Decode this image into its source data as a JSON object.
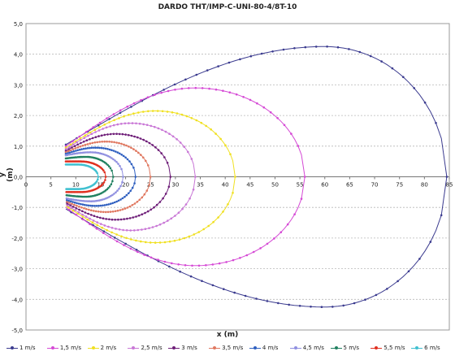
{
  "chart_data": {
    "type": "scatter",
    "title": "DARDO THT/IMP-C-UNI-80-4/8T-10",
    "xlabel": "x (m)",
    "ylabel": "y (m)",
    "xlim": [
      0,
      85
    ],
    "ylim": [
      -5,
      5
    ],
    "x_ticks": [
      "0",
      "5",
      "10",
      "15",
      "20",
      "25",
      "30",
      "35",
      "40",
      "45",
      "50",
      "55",
      "60",
      "65",
      "70",
      "75",
      "80",
      "85"
    ],
    "y_ticks": [
      "-5,0",
      "-4,0",
      "-3,0",
      "-2,0",
      "-1,0",
      "0,0",
      "1,0",
      "2,0",
      "3,0",
      "4,0",
      "5,0"
    ],
    "grid": "horizontal dashed",
    "legend_position": "bottom",
    "series": [
      {
        "name": "1 m/s",
        "color": "#3b3b8f",
        "x0": 8,
        "x_max": 84.5,
        "x_peak": 60,
        "y_max": 4.25,
        "y_start": 1.05
      },
      {
        "name": "1,5 m/s",
        "color": "#d54ad5",
        "x0": 8,
        "x_max": 56,
        "x_peak": 34,
        "y_max": 2.9,
        "y_start": 1.0
      },
      {
        "name": "2 m/s",
        "color": "#f0e020",
        "x0": 8,
        "x_max": 42,
        "x_peak": 26,
        "y_max": 2.15,
        "y_start": 0.95
      },
      {
        "name": "2,5 m/s",
        "color": "#c978d6",
        "x0": 8,
        "x_max": 34,
        "x_peak": 21,
        "y_max": 1.75,
        "y_start": 0.9
      },
      {
        "name": "3 m/s",
        "color": "#6e1e78",
        "x0": 8,
        "x_max": 29,
        "x_peak": 18,
        "y_max": 1.4,
        "y_start": 0.85
      },
      {
        "name": "3,5 m/s",
        "color": "#e07860",
        "x0": 8,
        "x_max": 25,
        "x_peak": 16,
        "y_max": 1.15,
        "y_start": 0.8
      },
      {
        "name": "4 m/s",
        "color": "#3060c0",
        "x0": 8,
        "x_max": 22,
        "x_peak": 14,
        "y_max": 0.95,
        "y_start": 0.75
      },
      {
        "name": "4,5 m/s",
        "color": "#9090e0",
        "x0": 8,
        "x_max": 19.5,
        "x_peak": 13,
        "y_max": 0.8,
        "y_start": 0.7
      },
      {
        "name": "5 m/s",
        "color": "#208060",
        "x0": 8,
        "x_max": 17.5,
        "x_peak": 12,
        "y_max": 0.65,
        "y_start": 0.6
      },
      {
        "name": "5,5 m/s",
        "color": "#e03020",
        "x0": 8,
        "x_max": 16,
        "x_peak": 11,
        "y_max": 0.5,
        "y_start": 0.5
      },
      {
        "name": "6 m/s",
        "color": "#40c0d0",
        "x0": 8,
        "x_max": 14.5,
        "x_peak": 10.5,
        "y_max": 0.4,
        "y_start": 0.4
      }
    ]
  }
}
